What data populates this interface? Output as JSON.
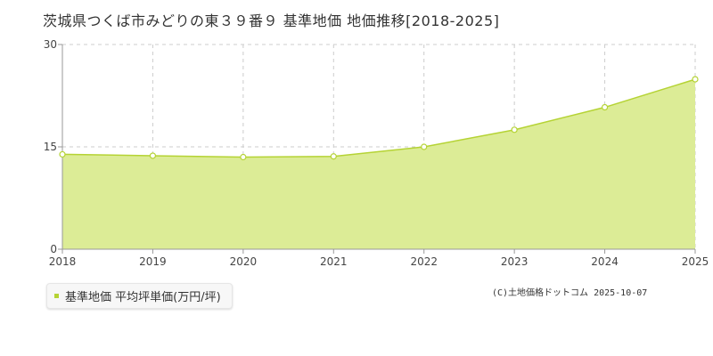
{
  "page": {
    "title": "茨城県つくば市みどりの東３９番９ 基準地価 地価推移[2018-2025]",
    "legend_label": "基準地価 平均坪単価(万円/坪)",
    "copyright": "(C)土地価格ドットコム 2025-10-07"
  },
  "colors": {
    "area_fill": "#dcec96",
    "line": "#b5d334",
    "point_fill": "#ffffff",
    "grid": "#cccccc",
    "axis": "#999999",
    "legend_swatch": "#b5d334"
  },
  "chart_data": {
    "type": "area",
    "categories": [
      "2018",
      "2019",
      "2020",
      "2021",
      "2022",
      "2023",
      "2024",
      "2025"
    ],
    "series": [
      {
        "name": "基準地価 平均坪単価(万円/坪)",
        "values": [
          13.9,
          13.7,
          13.5,
          13.6,
          15.0,
          17.5,
          20.8,
          24.9
        ]
      }
    ],
    "ylim": [
      0,
      30
    ],
    "yticks": [
      0,
      15,
      30
    ],
    "xlabel": "",
    "ylabel": "",
    "grid": true,
    "legend_position": "bottom-left"
  }
}
